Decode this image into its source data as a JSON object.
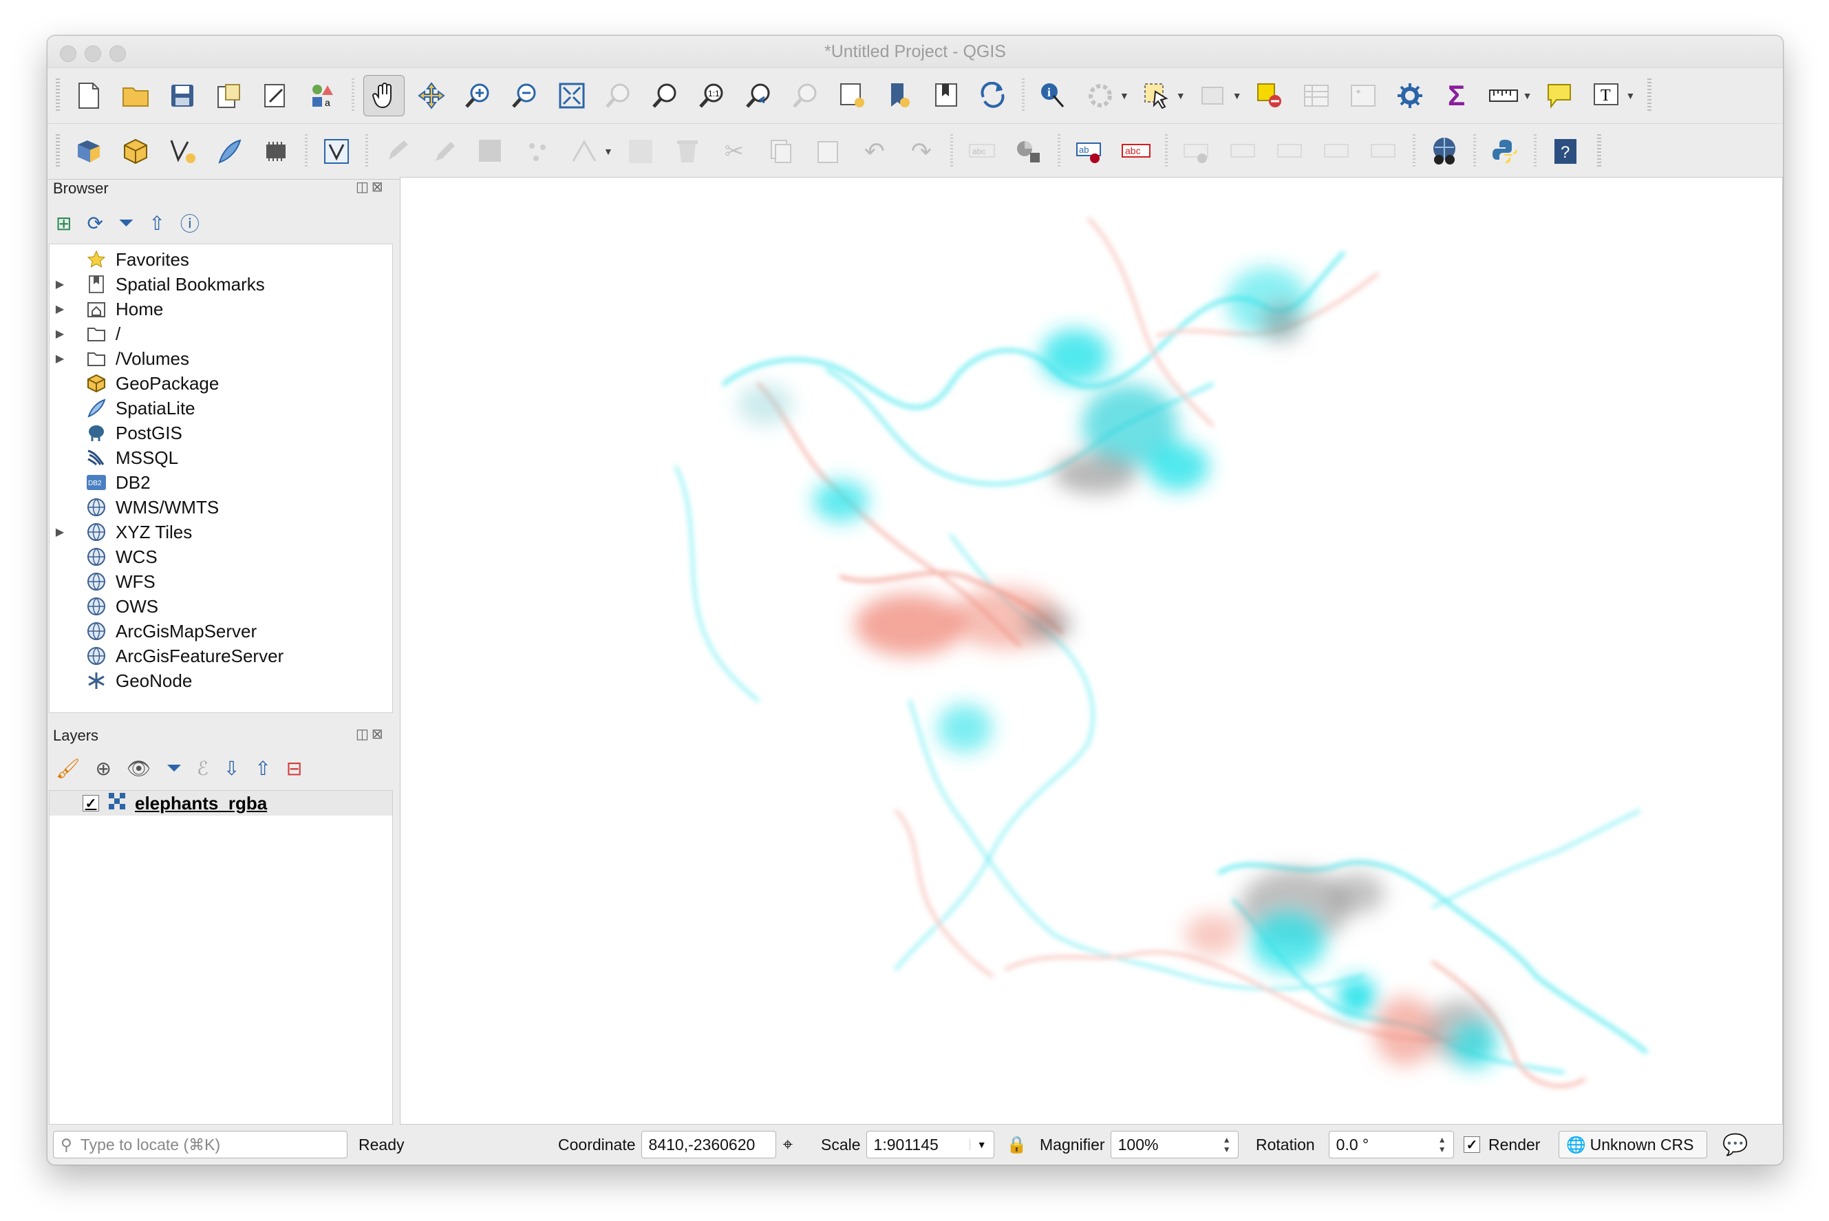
{
  "window": {
    "title": "*Untitled Project - QGIS"
  },
  "browser": {
    "title": "Browser",
    "items": [
      {
        "label": "Favorites",
        "icon": "star-icon",
        "expandable": false
      },
      {
        "label": "Spatial Bookmarks",
        "icon": "bookmark-icon",
        "expandable": true
      },
      {
        "label": "Home",
        "icon": "home-folder-icon",
        "expandable": true
      },
      {
        "label": "/",
        "icon": "folder-icon",
        "expandable": true
      },
      {
        "label": "/Volumes",
        "icon": "folder-icon",
        "expandable": true
      },
      {
        "label": "GeoPackage",
        "icon": "geopackage-icon",
        "expandable": false
      },
      {
        "label": "SpatiaLite",
        "icon": "spatialite-feather-icon",
        "expandable": false
      },
      {
        "label": "PostGIS",
        "icon": "postgis-elephant-icon",
        "expandable": false
      },
      {
        "label": "MSSQL",
        "icon": "mssql-icon",
        "expandable": false
      },
      {
        "label": "DB2",
        "icon": "db2-icon",
        "expandable": false
      },
      {
        "label": "WMS/WMTS",
        "icon": "globe-icon",
        "expandable": false
      },
      {
        "label": "XYZ Tiles",
        "icon": "globe-icon",
        "expandable": true
      },
      {
        "label": "WCS",
        "icon": "globe-icon",
        "expandable": false
      },
      {
        "label": "WFS",
        "icon": "globe-icon",
        "expandable": false
      },
      {
        "label": "OWS",
        "icon": "globe-icon",
        "expandable": false
      },
      {
        "label": "ArcGisMapServer",
        "icon": "globe-icon",
        "expandable": false
      },
      {
        "label": "ArcGisFeatureServer",
        "icon": "globe-icon",
        "expandable": false
      },
      {
        "label": "GeoNode",
        "icon": "geonode-icon",
        "expandable": false
      }
    ]
  },
  "layers": {
    "title": "Layers",
    "items": [
      {
        "name": "elephants_rgba",
        "checked": true,
        "icon": "raster-layer-icon"
      }
    ]
  },
  "status": {
    "locator_placeholder": "Type to locate (⌘K)",
    "message": "Ready",
    "coordinate_label": "Coordinate",
    "coordinate_value": "8410,-2360620",
    "scale_label": "Scale",
    "scale_value": "1:901145",
    "magnifier_label": "Magnifier",
    "magnifier_value": "100%",
    "rotation_label": "Rotation",
    "rotation_value": "0.0 °",
    "render_label": "Render",
    "render_checked": true,
    "crs_label": "Unknown CRS"
  },
  "colors": {
    "track_cyan": "#25e3ea",
    "track_salmon": "#f08a7a",
    "track_gray": "#8a8a8a"
  }
}
